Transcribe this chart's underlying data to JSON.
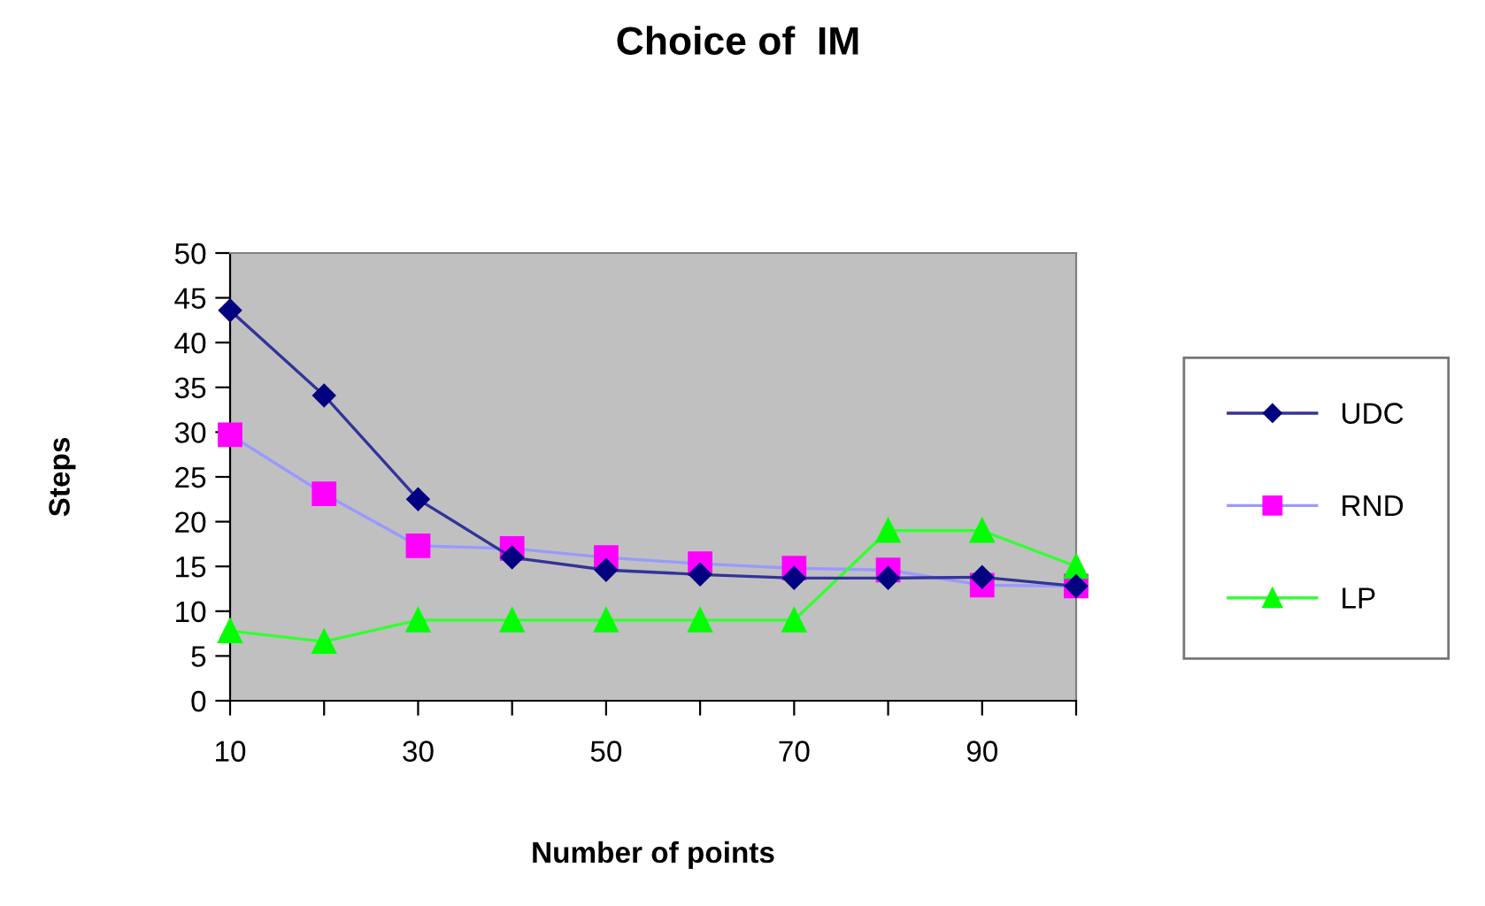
{
  "chart_data": {
    "type": "line",
    "title": "Choice of  IM",
    "xlabel": "Number of points",
    "ylabel": "Steps",
    "x": [
      10,
      20,
      30,
      40,
      50,
      60,
      70,
      80,
      90,
      100
    ],
    "series": [
      {
        "name": "UDC",
        "color": "#000080",
        "marker": "diamond",
        "values": [
          43.6,
          34.1,
          22.5,
          16,
          14.6,
          14.1,
          13.7,
          13.7,
          13.8,
          12.8
        ]
      },
      {
        "name": "RND",
        "color": "#ff00ff",
        "marker": "square",
        "values": [
          29.7,
          23.1,
          17.3,
          17,
          16,
          15.3,
          14.8,
          14.6,
          12.9,
          12.8
        ]
      },
      {
        "name": "LP",
        "color": "#00ff00",
        "marker": "triangle",
        "values": [
          7.8,
          6.6,
          9,
          9,
          9,
          9,
          9,
          19,
          19,
          15
        ]
      }
    ],
    "xlim": [
      10,
      100
    ],
    "xticks": [
      10,
      {
        "value": 20,
        "label": null
      },
      30,
      {
        "value": 40,
        "label": null
      },
      50,
      {
        "value": 60,
        "label": null
      },
      70,
      {
        "value": 80,
        "label": null
      },
      90,
      {
        "value": 100,
        "label": null
      }
    ],
    "ylim": [
      0,
      50
    ],
    "yticks": [
      0,
      5,
      10,
      15,
      20,
      25,
      30,
      35,
      40,
      45,
      50
    ],
    "grid": false,
    "legend": "right",
    "line_style": "solid"
  }
}
